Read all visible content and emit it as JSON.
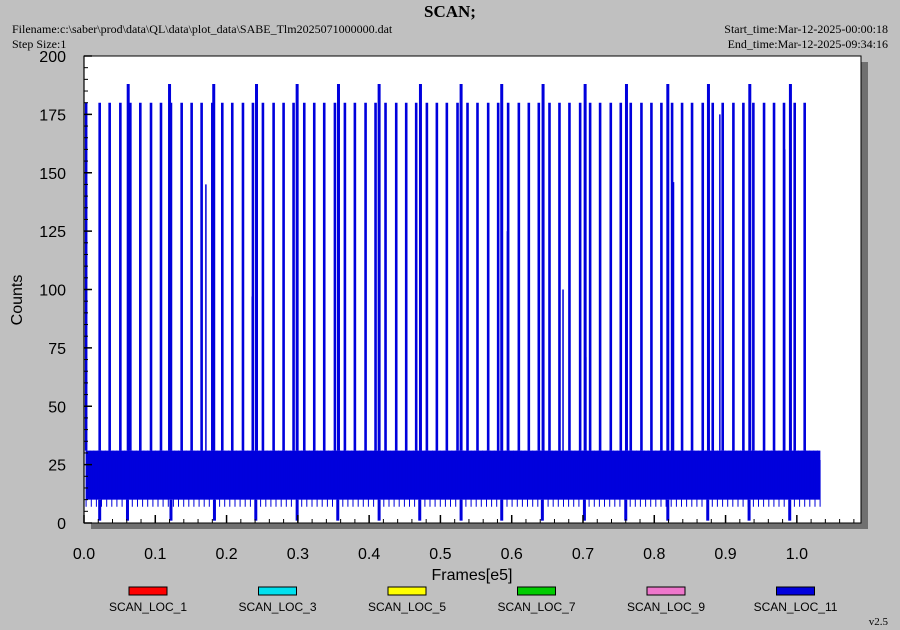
{
  "header": {
    "title": "SCAN;",
    "filename": "Filename:c:\\saber\\prod\\data\\QL\\data\\plot_data\\SABE_Tlm2025071000000.dat",
    "step_size": "Step Size:1",
    "start_time": "Start_time:Mar-12-2025-00:00:18",
    "end_time": "End_time:Mar-12-2025-09:34:16",
    "version": "v2.5"
  },
  "chart_data": {
    "type": "line",
    "xlabel": "Frames[e5]",
    "ylabel": "Counts",
    "xlim": [
      0,
      1.09
    ],
    "ylim": [
      0,
      200
    ],
    "x_ticks": [
      0.0,
      0.1,
      0.2,
      0.3,
      0.4,
      0.5,
      0.6,
      0.7,
      0.8,
      0.9,
      1.0
    ],
    "x_tick_labels": [
      "0.0",
      "0.1",
      "0.2",
      "0.3",
      "0.4",
      "0.5",
      "0.6",
      "0.7",
      "0.8",
      "0.9",
      "1.0"
    ],
    "y_ticks": [
      0,
      25,
      50,
      75,
      100,
      125,
      150,
      175,
      200
    ],
    "y_tick_labels": [
      "0",
      "25",
      "50",
      "75",
      "100",
      "125",
      "150",
      "175",
      "200"
    ],
    "grid": false,
    "legend_position": "bottom",
    "series": [
      {
        "name": "SCAN_LOC_1",
        "color": "#ff0000"
      },
      {
        "name": "SCAN_LOC_3",
        "color": "#00e0ee"
      },
      {
        "name": "SCAN_LOC_5",
        "color": "#ffff00"
      },
      {
        "name": "SCAN_LOC_7",
        "color": "#00cc00"
      },
      {
        "name": "SCAN_LOC_9",
        "color": "#ee77cc"
      },
      {
        "name": "SCAN_LOC_11",
        "color": "#0000dd"
      }
    ],
    "baseline_band": {
      "x_start": 0.003,
      "x_end": 1.033,
      "low": 10,
      "high": 31,
      "center": 20
    },
    "spikes_180": [
      0.003,
      0.022,
      0.036,
      0.051,
      0.065,
      0.079,
      0.094,
      0.108,
      0.122,
      0.137,
      0.151,
      0.165,
      0.18,
      0.194,
      0.208,
      0.223,
      0.237,
      0.251,
      0.266,
      0.28,
      0.294,
      0.309,
      0.323,
      0.337,
      0.352,
      0.366,
      0.38,
      0.395,
      0.409,
      0.423,
      0.438,
      0.452,
      0.466,
      0.481,
      0.495,
      0.509,
      0.524,
      0.538,
      0.552,
      0.567,
      0.581,
      0.595,
      0.61,
      0.624,
      0.638,
      0.653,
      0.667,
      0.681,
      0.696,
      0.71,
      0.724,
      0.739,
      0.753,
      0.767,
      0.782,
      0.796,
      0.81,
      0.825,
      0.839,
      0.853,
      0.868,
      0.882,
      0.896,
      0.911,
      0.925,
      0.939,
      0.954,
      0.968,
      0.982,
      0.997,
      1.011
    ],
    "spikes_188": [
      0.062,
      0.12,
      0.182,
      0.242,
      0.299,
      0.357,
      0.414,
      0.472,
      0.529,
      0.586,
      0.644,
      0.703,
      0.761,
      0.819,
      0.876,
      0.934,
      0.991
    ],
    "partial_spikes": [
      [
        0.171,
        145
      ],
      [
        0.165,
        118
      ],
      [
        0.236,
        97
      ],
      [
        0.243,
        100
      ],
      [
        0.594,
        125
      ],
      [
        0.672,
        100
      ],
      [
        0.704,
        71
      ],
      [
        0.827,
        146
      ],
      [
        0.892,
        175
      ],
      [
        0.983,
        160
      ]
    ],
    "dips_below_10": [
      0.022,
      0.061,
      0.122,
      0.183,
      0.241,
      0.299,
      0.356,
      0.414,
      0.471,
      0.529,
      0.586,
      0.643,
      0.702,
      0.76,
      0.819,
      0.875,
      0.933,
      0.99
    ]
  }
}
